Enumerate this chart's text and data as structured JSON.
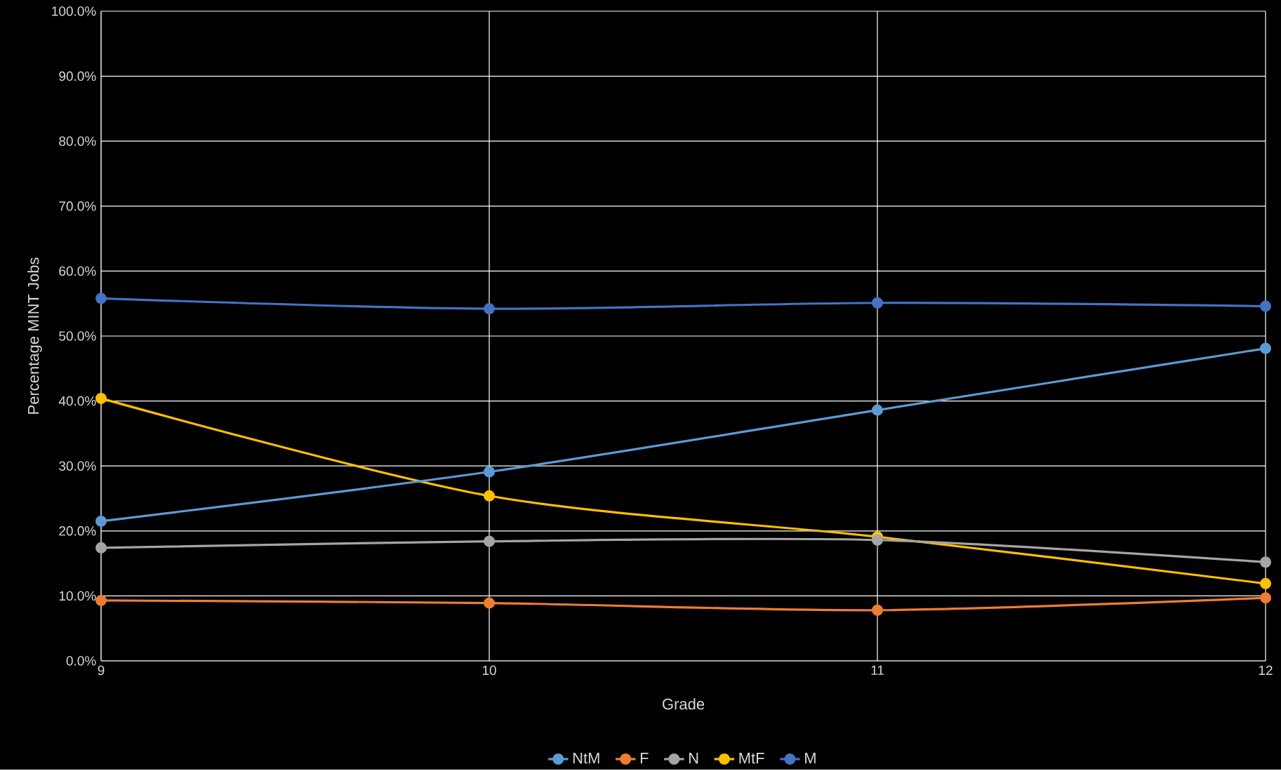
{
  "chart_data": {
    "type": "line",
    "xlabel": "Grade",
    "ylabel": "Percentage MINT Jobs",
    "x": [
      9,
      10,
      11,
      12
    ],
    "series": [
      {
        "name": "NtM",
        "color": "#5b9bd5",
        "values": [
          21.5,
          29.1,
          38.6,
          48.1
        ]
      },
      {
        "name": "F",
        "color": "#ed7d31",
        "values": [
          9.3,
          8.9,
          7.8,
          9.7
        ]
      },
      {
        "name": "N",
        "color": "#a5a5a5",
        "values": [
          17.4,
          18.4,
          18.6,
          15.2
        ]
      },
      {
        "name": "MtF",
        "color": "#ffc000",
        "values": [
          40.4,
          25.4,
          19.1,
          11.9
        ]
      },
      {
        "name": "M",
        "color": "#4472c4",
        "values": [
          55.8,
          54.2,
          55.1,
          54.6
        ]
      }
    ],
    "xlim": [
      9,
      12
    ],
    "xticks": [
      9,
      10,
      11,
      12
    ],
    "ylim": [
      0,
      100
    ],
    "yticks": [
      {
        "value": 0,
        "label": "0.0%"
      },
      {
        "value": 10,
        "label": "10.0%"
      },
      {
        "value": 20,
        "label": "20.0%"
      },
      {
        "value": 30,
        "label": "30.0%"
      },
      {
        "value": 40,
        "label": "40.0%"
      },
      {
        "value": 50,
        "label": "50.0%"
      },
      {
        "value": 60,
        "label": "60.0%"
      },
      {
        "value": 70,
        "label": "70.0%"
      },
      {
        "value": 80,
        "label": "80.0%"
      },
      {
        "value": 90,
        "label": "90.0%"
      },
      {
        "value": 100,
        "label": "100.0%"
      }
    ],
    "grid": true,
    "legend": "bottom",
    "marker": "circle",
    "line_style": "solid"
  }
}
